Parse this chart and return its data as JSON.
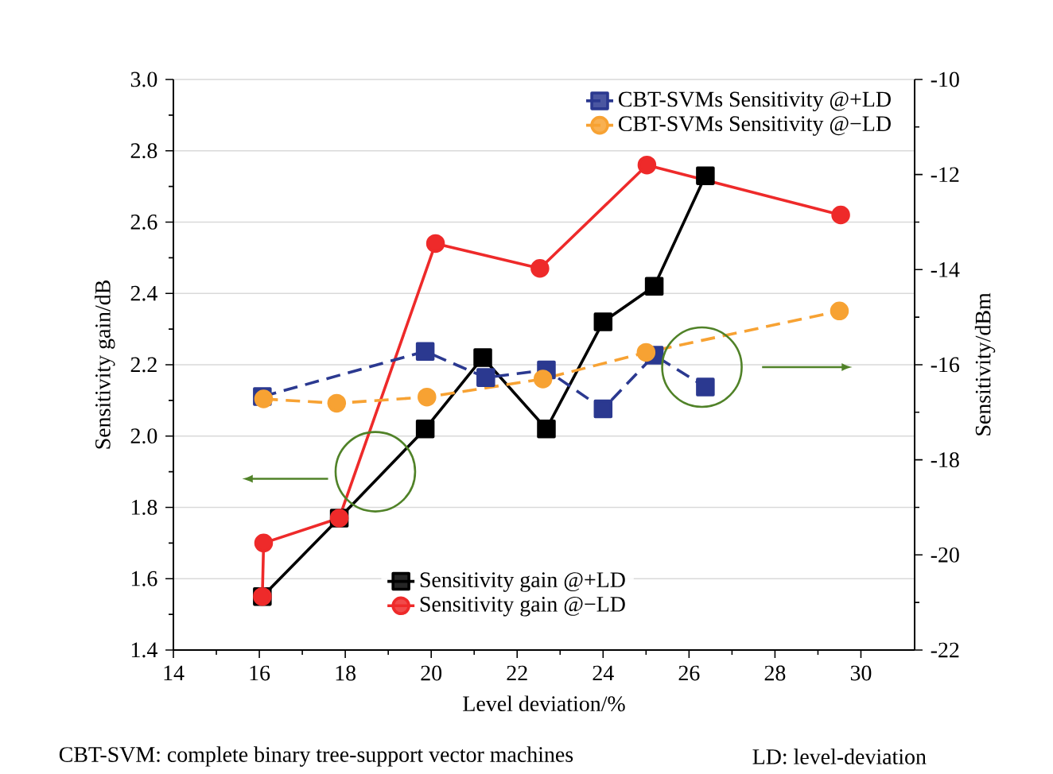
{
  "chart_data": {
    "type": "line",
    "xlabel": "Level deviation/%",
    "ylabel": "Sensitivity gain/dB",
    "y2label": "Sensitivity/dBm",
    "xlim": [
      14,
      31.25
    ],
    "xticks": [
      14,
      16,
      18,
      20,
      22,
      24,
      26,
      28,
      30
    ],
    "ylim": [
      1.4,
      3.0
    ],
    "yticks": [
      1.4,
      1.6,
      1.8,
      {
        "value": 2.0,
        "label": "2.0"
      },
      2.2,
      2.4,
      2.6,
      2.8,
      {
        "value": 3.0,
        "label": "3.0"
      }
    ],
    "y2lim": [
      -22,
      -10
    ],
    "y2ticks": [
      -22,
      -20,
      -18,
      -16,
      -14,
      -12,
      -10
    ],
    "grid": "y",
    "legend": "top right",
    "annotations": [
      "CBT-SVM: complete binary tree-support vector machines",
      "LD: level-deviation"
    ],
    "series": [
      {
        "name": "Sensitivity gain @+LD",
        "color": "#000000",
        "marker": "square",
        "line_style": "solid",
        "x": [
          16.07,
          17.86,
          19.86,
          21.2,
          22.68,
          24.0,
          25.19,
          26.38
        ],
        "values": [
          1.55,
          1.77,
          2.02,
          2.22,
          2.02,
          2.32,
          2.42,
          2.73
        ]
      },
      {
        "name": "Sensitivity gain @−LD",
        "color": "#ee2a2a",
        "marker": "circle",
        "line_style": "solid",
        "x": [
          16.07,
          16.1,
          17.86,
          20.1,
          22.53,
          25.02,
          29.53
        ],
        "values": [
          1.55,
          1.7,
          1.77,
          2.54,
          2.47,
          2.76,
          2.62
        ]
      },
      {
        "name": "CBT-SVMs Sensitivity @+LD",
        "color": "#2b3990",
        "marker": "square",
        "line_style": "dashed",
        "axis": "y2",
        "x": [
          16.07,
          19.86,
          21.27,
          22.68,
          24.0,
          25.19,
          26.38
        ],
        "values": [
          -16.67,
          -15.72,
          -16.27,
          -16.11,
          -16.93,
          -15.8,
          -16.47
        ]
      },
      {
        "name": "CBT-SVMs Sensitivity @−LD",
        "color": "#f7a233",
        "marker": "circle",
        "line_style": "dashed",
        "axis": "y2",
        "x": [
          16.1,
          17.8,
          19.9,
          22.6,
          25.0,
          29.5
        ],
        "values": [
          -16.72,
          -16.81,
          -16.68,
          -16.3,
          -15.74,
          -14.87
        ]
      }
    ]
  }
}
